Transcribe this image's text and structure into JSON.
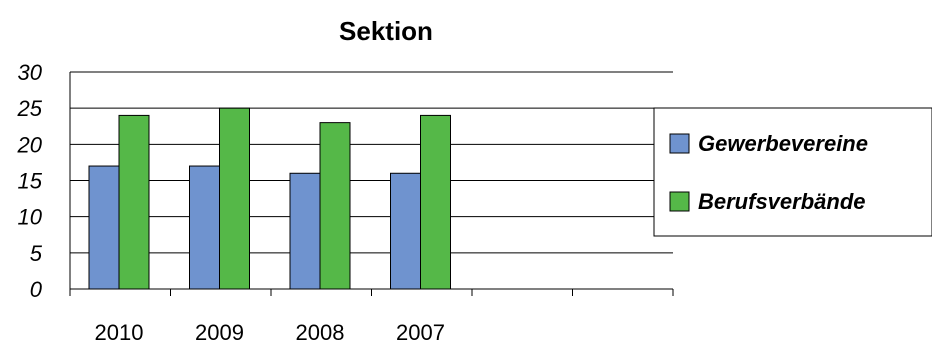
{
  "chart_data": {
    "type": "bar",
    "title": "Sektion",
    "xlabel": "",
    "ylabel": "",
    "categories": [
      "2010",
      "2009",
      "2008",
      "2007",
      "",
      ""
    ],
    "series": [
      {
        "name": "Gewerbevereine",
        "values": [
          17,
          17,
          16,
          16,
          null,
          null
        ],
        "color": "#6f93cf"
      },
      {
        "name": "Berufsverbände",
        "values": [
          24,
          25,
          23,
          24,
          null,
          null
        ],
        "color": "#55b848"
      }
    ],
    "ylim": [
      0,
      30
    ],
    "yticks": [
      "0",
      "5",
      "10",
      "15",
      "20",
      "25",
      "30"
    ],
    "grid": true,
    "legend_position": "right"
  }
}
